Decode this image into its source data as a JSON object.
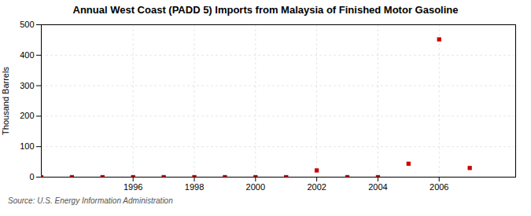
{
  "chart_data": {
    "type": "scatter",
    "title": "Annual West Coast (PADD 5) Imports from Malaysia of Finished Motor Gasoline",
    "ylabel": "Thousand Barrels",
    "source": "Source: U.S. Energy Information Administration",
    "x": [
      1993,
      1994,
      1995,
      1996,
      1997,
      1998,
      1999,
      2000,
      2001,
      2002,
      2003,
      2004,
      2005,
      2006,
      2007
    ],
    "values": [
      0,
      0,
      0,
      0,
      0,
      0,
      0,
      0,
      0,
      22,
      0,
      0,
      44,
      452,
      30
    ],
    "color": "#cc0000",
    "marker": "square",
    "xlim": [
      1993.0,
      2008.5
    ],
    "ylim": [
      0,
      500
    ],
    "xticks": [
      1996,
      1998,
      2000,
      2002,
      2004,
      2006
    ],
    "yticks": [
      0,
      100,
      200,
      300,
      400,
      500
    ],
    "grid": true
  }
}
